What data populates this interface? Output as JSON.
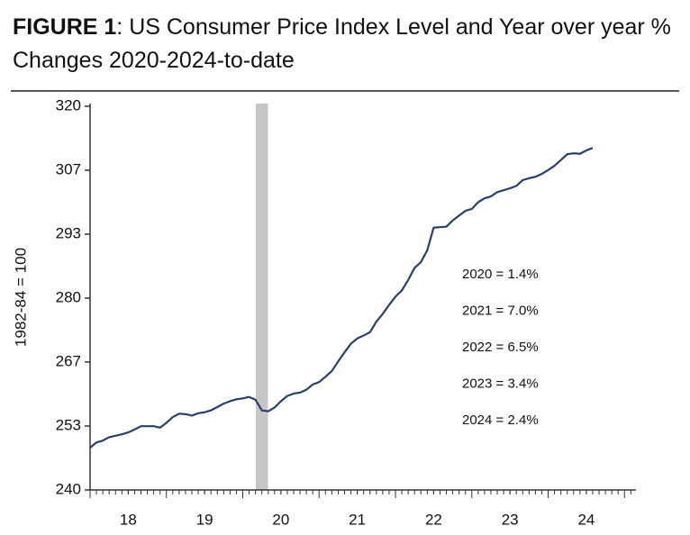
{
  "chart_data": {
    "type": "line",
    "title_prefix": "FIGURE 1",
    "title": ": US Consumer Price Index Level and Year over year % Changes 2020-2024-to-date",
    "ylabel": "1982-84 = 100",
    "xlim": [
      2018,
      2025.15
    ],
    "ylim": [
      240,
      320
    ],
    "yticks": [
      240,
      {
        "value": 253.33,
        "label": "253"
      },
      {
        "value": 266.67,
        "label": "267"
      },
      280,
      {
        "value": 293.33,
        "label": "293"
      },
      {
        "value": 306.67,
        "label": "307"
      },
      320
    ],
    "xticks": [
      {
        "value": 2018.5,
        "label": "18"
      },
      {
        "value": 2019.5,
        "label": "19"
      },
      {
        "value": 2020.5,
        "label": "20"
      },
      {
        "value": 2021.5,
        "label": "21"
      },
      {
        "value": 2022.5,
        "label": "22"
      },
      {
        "value": 2023.5,
        "label": "23"
      },
      {
        "value": 2024.5,
        "label": "24"
      }
    ],
    "shaded_range": [
      2020.17,
      2020.33
    ],
    "shade_color": "#c6c6c6",
    "annotations": [
      "2020 = 1.4%",
      "2021 = 7.0%",
      "2022 = 6.5%",
      "2023 = 3.4%",
      "2024 = 2.4%"
    ],
    "x": [
      2018.0,
      2018.083,
      2018.167,
      2018.25,
      2018.333,
      2018.417,
      2018.5,
      2018.583,
      2018.667,
      2018.75,
      2018.833,
      2018.917,
      2019.0,
      2019.083,
      2019.167,
      2019.25,
      2019.333,
      2019.417,
      2019.5,
      2019.583,
      2019.667,
      2019.75,
      2019.833,
      2019.917,
      2020.0,
      2020.083,
      2020.167,
      2020.25,
      2020.333,
      2020.417,
      2020.5,
      2020.583,
      2020.667,
      2020.75,
      2020.833,
      2020.917,
      2021.0,
      2021.083,
      2021.167,
      2021.25,
      2021.333,
      2021.417,
      2021.5,
      2021.583,
      2021.667,
      2021.75,
      2021.833,
      2021.917,
      2022.0,
      2022.083,
      2022.167,
      2022.25,
      2022.333,
      2022.417,
      2022.5,
      2022.583,
      2022.667,
      2022.75,
      2022.833,
      2022.917,
      2023.0,
      2023.083,
      2023.167,
      2023.25,
      2023.333,
      2023.417,
      2023.5,
      2023.583,
      2023.667,
      2023.75,
      2023.833,
      2023.917,
      2024.0,
      2024.083,
      2024.167,
      2024.25,
      2024.333,
      2024.417,
      2024.5,
      2024.583
    ],
    "series": [
      {
        "color": "#2b3f6b",
        "values": [
          248.8,
          249.9,
          250.3,
          251.0,
          251.3,
          251.6,
          252.0,
          252.6,
          253.3,
          253.3,
          253.3,
          253.0,
          254.0,
          255.2,
          255.9,
          255.8,
          255.5,
          256.0,
          256.2,
          256.6,
          257.3,
          258.0,
          258.5,
          258.9,
          259.1,
          259.4,
          258.8,
          256.6,
          256.4,
          257.2,
          258.5,
          259.6,
          260.1,
          260.3,
          260.9,
          262.0,
          262.5,
          263.6,
          264.8,
          266.8,
          268.7,
          270.5,
          271.6,
          272.2,
          272.9,
          275.1,
          276.7,
          278.6,
          280.3,
          281.6,
          283.8,
          286.3,
          287.5,
          290.0,
          294.7,
          294.8,
          294.9,
          296.2,
          297.2,
          298.2,
          298.6,
          300.0,
          300.8,
          301.2,
          302.1,
          302.5,
          302.9,
          303.4,
          304.6,
          305.0,
          305.3,
          305.9,
          306.7,
          307.6,
          308.8,
          310.0,
          310.2,
          310.1,
          310.8,
          311.3
        ]
      }
    ]
  }
}
